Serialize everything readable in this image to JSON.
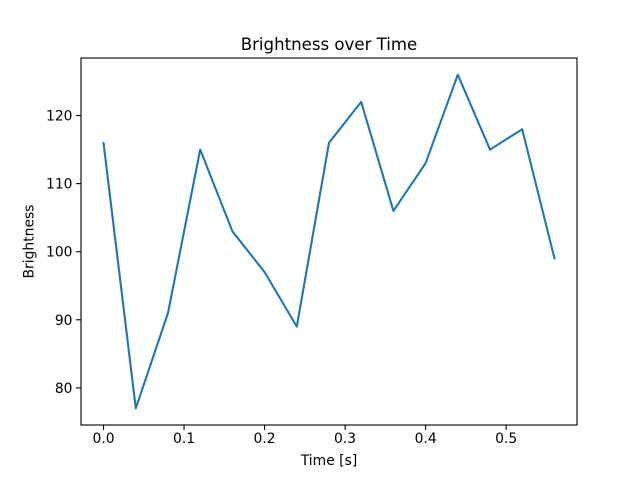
{
  "chart_data": {
    "type": "line",
    "title": "Brightness over Time",
    "xlabel": "Time [s]",
    "ylabel": "Brightness",
    "x": [
      0.0,
      0.04,
      0.08,
      0.12,
      0.16,
      0.2,
      0.24,
      0.28,
      0.32,
      0.36,
      0.4,
      0.44,
      0.48,
      0.52,
      0.56
    ],
    "values": [
      116,
      77,
      91,
      115,
      103,
      97,
      89,
      116,
      122,
      106,
      113,
      126,
      115,
      118,
      99
    ],
    "xlim": [
      -0.028,
      0.588
    ],
    "ylim": [
      74.55,
      128.45
    ],
    "xticks": [
      0.0,
      0.1,
      0.2,
      0.3,
      0.4,
      0.5
    ],
    "xtick_labels": [
      "0.0",
      "0.1",
      "0.2",
      "0.3",
      "0.4",
      "0.5"
    ],
    "yticks": [
      80,
      90,
      100,
      110,
      120
    ],
    "ytick_labels": [
      "80",
      "90",
      "100",
      "110",
      "120"
    ],
    "line_color": "#1f77b4",
    "spine_color": "#000000",
    "background_color": "#ffffff",
    "grid": false,
    "legend": null,
    "marker": "none"
  }
}
